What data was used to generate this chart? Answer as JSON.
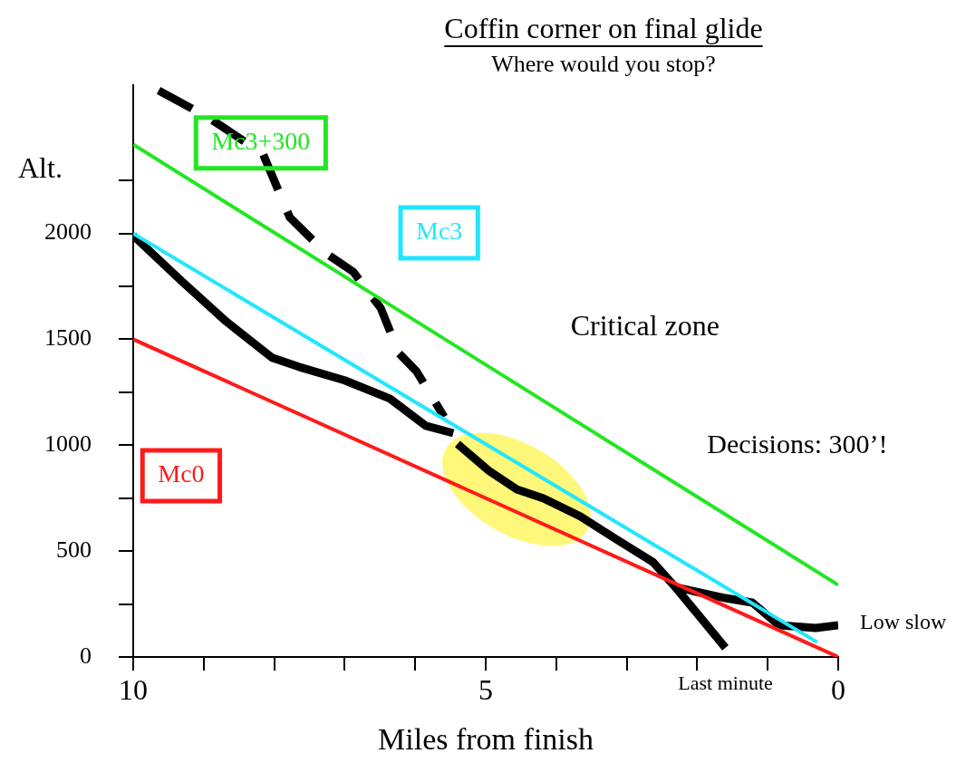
{
  "chart_data": {
    "type": "line",
    "title": "Coffin corner on final glide",
    "subtitle": "Where would you stop?",
    "xlabel": "Miles from finish",
    "ylabel": "Alt.",
    "xlim": [
      10,
      0
    ],
    "xticks": [
      10,
      {
        "value": 9,
        "label": null
      },
      {
        "value": 8,
        "label": null
      },
      {
        "value": 7,
        "label": null
      },
      {
        "value": 6,
        "label": null
      },
      5,
      {
        "value": 4,
        "label": null
      },
      {
        "value": 3,
        "label": null
      },
      {
        "value": 2,
        "label": null
      },
      {
        "value": 1,
        "label": null
      },
      0
    ],
    "ylim": [
      0,
      2700
    ],
    "yticks": [
      0,
      {
        "value": 250,
        "label": null
      },
      500,
      {
        "value": 750,
        "label": null
      },
      1000,
      {
        "value": 1250,
        "label": null
      },
      1500,
      {
        "value": 1750,
        "label": null
      },
      2000,
      {
        "value": 2250,
        "label": null
      }
    ],
    "grid": false,
    "legend": false,
    "marker": "none",
    "series": [
      {
        "name": "Mc3+300",
        "color": "#22e622",
        "x": [
          10,
          0
        ],
        "values": [
          2420,
          340
        ]
      },
      {
        "name": "Mc3",
        "color": "#22e6ff",
        "x": [
          10,
          0.3
        ],
        "values": [
          2000,
          70
        ]
      },
      {
        "name": "Mc0",
        "color": "#ff1a1a",
        "x": [
          10,
          0
        ],
        "values": [
          1500,
          0
        ]
      },
      {
        "color": "#000000",
        "line_style": "dashed",
        "x": [
          9.64,
          8.93,
          8.16,
          7.78,
          7.26,
          6.88,
          6.49,
          6.23,
          5.98,
          5.59
        ],
        "values": [
          2675,
          2547,
          2376,
          2076,
          1905,
          1819,
          1648,
          1434,
          1348,
          1134
        ]
      },
      {
        "color": "#000000",
        "x": [
          10,
          9.32,
          8.68,
          8.03,
          7.65,
          7.0,
          6.36,
          5.85,
          5.46
        ],
        "values": [
          1990,
          1777,
          1584,
          1413,
          1370,
          1306,
          1220,
          1092,
          1057
        ]
      },
      {
        "color": "#000000",
        "x": [
          5.4,
          4.95,
          4.56,
          4.18,
          3.66,
          3.15,
          2.63,
          2.31,
          1.6,
          1.22,
          0.84,
          0.32,
          0
        ],
        "values": [
          1006,
          878,
          792,
          749,
          664,
          556,
          449,
          330,
          278,
          257,
          150,
          137,
          150
        ]
      },
      {
        "color": "#000000",
        "x": [
          2.31,
          1.6
        ],
        "values": [
          330,
          43
        ]
      }
    ],
    "annotations": [
      "Critical zone",
      "Decisions: 300’!",
      "Last minute",
      {
        "text": "Low slow",
        "x": 0,
        "y": 150
      }
    ]
  }
}
